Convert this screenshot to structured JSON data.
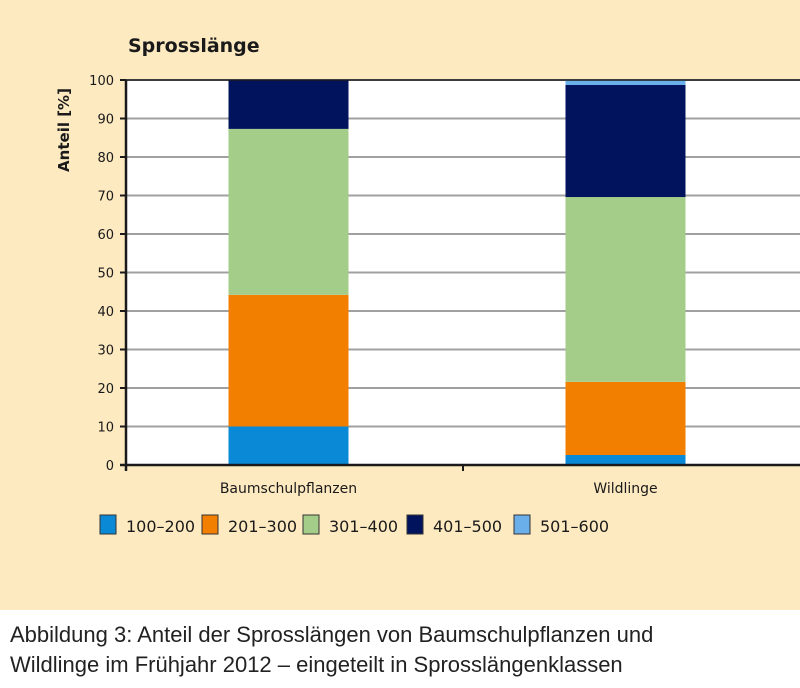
{
  "chart_data": {
    "type": "bar",
    "stacked": true,
    "title": "Sprosslänge",
    "xlabel": "",
    "ylabel": "Anteil [%]",
    "ylim": [
      0,
      100
    ],
    "yticks": [
      0,
      10,
      20,
      30,
      40,
      50,
      60,
      70,
      80,
      90,
      100
    ],
    "grid": true,
    "legend_position": "bottom",
    "categories": [
      "Baumschulpflanzen",
      "Wildlinge"
    ],
    "series": [
      {
        "name": "100–200",
        "color": "#0a8ad6",
        "values": [
          10.0,
          2.6
        ]
      },
      {
        "name": "201–300",
        "color": "#f27f00",
        "values": [
          34.2,
          19.0
        ]
      },
      {
        "name": "301–400",
        "color": "#a5cd8a",
        "values": [
          43.1,
          48.0
        ]
      },
      {
        "name": "401–500",
        "color": "#00135c",
        "values": [
          12.7,
          29.1
        ]
      },
      {
        "name": "501–600",
        "color": "#6aaeea",
        "values": [
          0.0,
          1.3
        ]
      }
    ]
  },
  "caption": {
    "line1": "Abbildung 3: Anteil der Sprosslängen von Baumschulpflanzen und",
    "line2": "Wildlinge im Frühjahr 2012 – eingeteilt in Sprosslängenklassen"
  }
}
